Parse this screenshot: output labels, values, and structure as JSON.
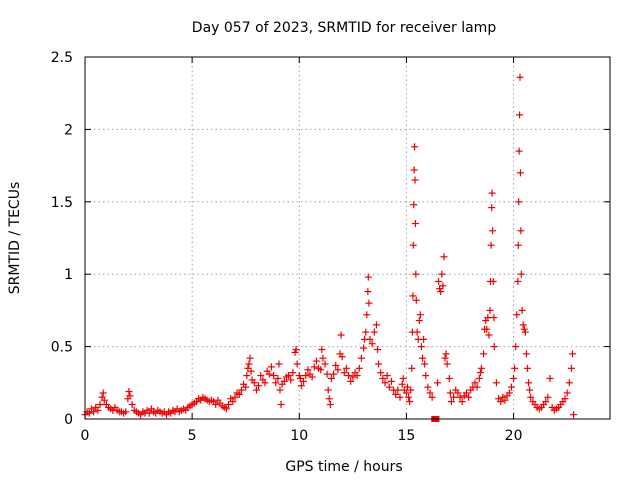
{
  "chart_data": {
    "type": "scatter",
    "title": "Day 057 of 2023, SRMTID for receiver lamp",
    "xlabel": "GPS time / hours",
    "ylabel": "SRMTID / TECUs",
    "xlim": [
      0,
      24.5
    ],
    "ylim": [
      0,
      2.5
    ],
    "xticks": [
      0,
      5,
      10,
      15,
      20
    ],
    "xtick_labels": [
      "0",
      "5",
      "10",
      "15",
      "20"
    ],
    "yticks": [
      0,
      0.5,
      1,
      1.5,
      2,
      2.5
    ],
    "ytick_labels": [
      "0",
      "0.5",
      "1",
      "1.5",
      "2",
      "2.5"
    ],
    "grid": true,
    "marker": "+",
    "color": "#ee0000",
    "series": [
      {
        "name": "lamp",
        "points": [
          [
            0.0,
            0.03
          ],
          [
            0.1,
            0.05
          ],
          [
            0.2,
            0.04
          ],
          [
            0.3,
            0.07
          ],
          [
            0.4,
            0.05
          ],
          [
            0.5,
            0.08
          ],
          [
            0.6,
            0.06
          ],
          [
            0.7,
            0.1
          ],
          [
            0.8,
            0.15
          ],
          [
            0.85,
            0.18
          ],
          [
            0.9,
            0.13
          ],
          [
            1.0,
            0.1
          ],
          [
            1.1,
            0.08
          ],
          [
            1.2,
            0.07
          ],
          [
            1.3,
            0.06
          ],
          [
            1.4,
            0.08
          ],
          [
            1.5,
            0.06
          ],
          [
            1.6,
            0.05
          ],
          [
            1.7,
            0.05
          ],
          [
            1.8,
            0.04
          ],
          [
            1.9,
            0.05
          ],
          [
            2.0,
            0.14
          ],
          [
            2.05,
            0.19
          ],
          [
            2.1,
            0.16
          ],
          [
            2.2,
            0.1
          ],
          [
            2.3,
            0.06
          ],
          [
            2.4,
            0.05
          ],
          [
            2.5,
            0.04
          ],
          [
            2.6,
            0.03
          ],
          [
            2.7,
            0.05
          ],
          [
            2.8,
            0.04
          ],
          [
            2.9,
            0.06
          ],
          [
            3.0,
            0.04
          ],
          [
            3.1,
            0.07
          ],
          [
            3.2,
            0.05
          ],
          [
            3.3,
            0.04
          ],
          [
            3.4,
            0.06
          ],
          [
            3.5,
            0.05
          ],
          [
            3.6,
            0.04
          ],
          [
            3.7,
            0.05
          ],
          [
            3.8,
            0.03
          ],
          [
            3.9,
            0.05
          ],
          [
            4.0,
            0.04
          ],
          [
            4.1,
            0.06
          ],
          [
            4.2,
            0.05
          ],
          [
            4.3,
            0.07
          ],
          [
            4.4,
            0.05
          ],
          [
            4.5,
            0.06
          ],
          [
            4.6,
            0.07
          ],
          [
            4.7,
            0.06
          ],
          [
            4.8,
            0.08
          ],
          [
            4.9,
            0.09
          ],
          [
            5.0,
            0.1
          ],
          [
            5.1,
            0.11
          ],
          [
            5.2,
            0.12
          ],
          [
            5.3,
            0.14
          ],
          [
            5.4,
            0.13
          ],
          [
            5.5,
            0.15
          ],
          [
            5.6,
            0.14
          ],
          [
            5.7,
            0.13
          ],
          [
            5.8,
            0.12
          ],
          [
            5.9,
            0.13
          ],
          [
            6.0,
            0.12
          ],
          [
            6.1,
            0.1
          ],
          [
            6.2,
            0.13
          ],
          [
            6.3,
            0.11
          ],
          [
            6.4,
            0.09
          ],
          [
            6.5,
            0.08
          ],
          [
            6.6,
            0.07
          ],
          [
            6.7,
            0.1
          ],
          [
            6.8,
            0.14
          ],
          [
            6.9,
            0.12
          ],
          [
            7.0,
            0.15
          ],
          [
            7.1,
            0.18
          ],
          [
            7.2,
            0.17
          ],
          [
            7.3,
            0.2
          ],
          [
            7.4,
            0.24
          ],
          [
            7.5,
            0.22
          ],
          [
            7.55,
            0.3
          ],
          [
            7.6,
            0.35
          ],
          [
            7.65,
            0.38
          ],
          [
            7.7,
            0.42
          ],
          [
            7.75,
            0.33
          ],
          [
            7.8,
            0.27
          ],
          [
            7.9,
            0.25
          ],
          [
            8.0,
            0.2
          ],
          [
            8.1,
            0.23
          ],
          [
            8.2,
            0.3
          ],
          [
            8.3,
            0.27
          ],
          [
            8.4,
            0.25
          ],
          [
            8.5,
            0.33
          ],
          [
            8.6,
            0.31
          ],
          [
            8.7,
            0.36
          ],
          [
            8.8,
            0.3
          ],
          [
            8.9,
            0.25
          ],
          [
            9.0,
            0.28
          ],
          [
            9.05,
            0.38
          ],
          [
            9.1,
            0.2
          ],
          [
            9.15,
            0.1
          ],
          [
            9.2,
            0.24
          ],
          [
            9.3,
            0.26
          ],
          [
            9.4,
            0.29
          ],
          [
            9.5,
            0.3
          ],
          [
            9.6,
            0.27
          ],
          [
            9.7,
            0.32
          ],
          [
            9.8,
            0.46
          ],
          [
            9.85,
            0.48
          ],
          [
            9.9,
            0.38
          ],
          [
            10.0,
            0.3
          ],
          [
            10.05,
            0.28
          ],
          [
            10.1,
            0.23
          ],
          [
            10.2,
            0.26
          ],
          [
            10.3,
            0.3
          ],
          [
            10.4,
            0.34
          ],
          [
            10.5,
            0.31
          ],
          [
            10.6,
            0.29
          ],
          [
            10.7,
            0.36
          ],
          [
            10.8,
            0.4
          ],
          [
            10.9,
            0.35
          ],
          [
            11.0,
            0.34
          ],
          [
            11.05,
            0.48
          ],
          [
            11.1,
            0.42
          ],
          [
            11.2,
            0.38
          ],
          [
            11.3,
            0.31
          ],
          [
            11.35,
            0.2
          ],
          [
            11.4,
            0.14
          ],
          [
            11.45,
            0.1
          ],
          [
            11.5,
            0.28
          ],
          [
            11.6,
            0.31
          ],
          [
            11.7,
            0.37
          ],
          [
            11.8,
            0.34
          ],
          [
            11.9,
            0.45
          ],
          [
            11.95,
            0.58
          ],
          [
            12.0,
            0.43
          ],
          [
            12.1,
            0.32
          ],
          [
            12.2,
            0.35
          ],
          [
            12.3,
            0.3
          ],
          [
            12.4,
            0.26
          ],
          [
            12.5,
            0.29
          ],
          [
            12.6,
            0.32
          ],
          [
            12.7,
            0.3
          ],
          [
            12.8,
            0.35
          ],
          [
            12.9,
            0.42
          ],
          [
            13.0,
            0.49
          ],
          [
            13.05,
            0.55
          ],
          [
            13.1,
            0.6
          ],
          [
            13.15,
            0.72
          ],
          [
            13.2,
            0.88
          ],
          [
            13.22,
            0.98
          ],
          [
            13.25,
            0.8
          ],
          [
            13.3,
            0.55
          ],
          [
            13.4,
            0.52
          ],
          [
            13.5,
            0.6
          ],
          [
            13.6,
            0.65
          ],
          [
            13.65,
            0.48
          ],
          [
            13.7,
            0.38
          ],
          [
            13.8,
            0.32
          ],
          [
            13.9,
            0.28
          ],
          [
            14.0,
            0.25
          ],
          [
            14.1,
            0.3
          ],
          [
            14.2,
            0.22
          ],
          [
            14.3,
            0.26
          ],
          [
            14.4,
            0.2
          ],
          [
            14.5,
            0.17
          ],
          [
            14.6,
            0.2
          ],
          [
            14.7,
            0.15
          ],
          [
            14.8,
            0.24
          ],
          [
            14.85,
            0.28
          ],
          [
            14.9,
            0.2
          ],
          [
            15.0,
            0.18
          ],
          [
            15.05,
            0.22
          ],
          [
            15.1,
            0.15
          ],
          [
            15.15,
            0.12
          ],
          [
            15.2,
            0.2
          ],
          [
            15.25,
            0.35
          ],
          [
            15.28,
            0.6
          ],
          [
            15.3,
            0.85
          ],
          [
            15.32,
            1.2
          ],
          [
            15.34,
            1.48
          ],
          [
            15.36,
            1.72
          ],
          [
            15.38,
            1.88
          ],
          [
            15.4,
            1.65
          ],
          [
            15.42,
            1.35
          ],
          [
            15.44,
            1.0
          ],
          [
            15.46,
            0.82
          ],
          [
            15.5,
            0.6
          ],
          [
            15.55,
            0.55
          ],
          [
            15.6,
            0.68
          ],
          [
            15.65,
            0.72
          ],
          [
            15.7,
            0.5
          ],
          [
            15.75,
            0.42
          ],
          [
            15.8,
            0.55
          ],
          [
            15.85,
            0.38
          ],
          [
            15.9,
            0.3
          ],
          [
            16.0,
            0.22
          ],
          [
            16.1,
            0.18
          ],
          [
            16.2,
            0.15
          ],
          [
            16.3,
            0.0
          ],
          [
            16.4,
            0.0
          ],
          [
            16.45,
            0.25
          ],
          [
            16.5,
            0.95
          ],
          [
            16.55,
            0.9
          ],
          [
            16.6,
            0.88
          ],
          [
            16.65,
            1.0
          ],
          [
            16.7,
            0.92
          ],
          [
            16.75,
            1.12
          ],
          [
            16.8,
            0.42
          ],
          [
            16.85,
            0.45
          ],
          [
            16.9,
            0.38
          ],
          [
            17.0,
            0.28
          ],
          [
            17.05,
            0.18
          ],
          [
            17.1,
            0.12
          ],
          [
            17.2,
            0.15
          ],
          [
            17.3,
            0.2
          ],
          [
            17.4,
            0.18
          ],
          [
            17.5,
            0.15
          ],
          [
            17.6,
            0.12
          ],
          [
            17.7,
            0.16
          ],
          [
            17.8,
            0.18
          ],
          [
            17.9,
            0.15
          ],
          [
            18.0,
            0.2
          ],
          [
            18.1,
            0.22
          ],
          [
            18.2,
            0.25
          ],
          [
            18.3,
            0.22
          ],
          [
            18.4,
            0.28
          ],
          [
            18.45,
            0.32
          ],
          [
            18.5,
            0.35
          ],
          [
            18.6,
            0.45
          ],
          [
            18.65,
            0.62
          ],
          [
            18.7,
            0.68
          ],
          [
            18.75,
            0.62
          ],
          [
            18.8,
            0.7
          ],
          [
            18.85,
            0.58
          ],
          [
            18.9,
            0.75
          ],
          [
            18.92,
            0.95
          ],
          [
            18.95,
            1.2
          ],
          [
            18.98,
            1.46
          ],
          [
            19.0,
            1.56
          ],
          [
            19.02,
            1.3
          ],
          [
            19.05,
            0.95
          ],
          [
            19.08,
            0.7
          ],
          [
            19.1,
            0.5
          ],
          [
            19.2,
            0.25
          ],
          [
            19.3,
            0.14
          ],
          [
            19.4,
            0.12
          ],
          [
            19.5,
            0.15
          ],
          [
            19.6,
            0.13
          ],
          [
            19.7,
            0.16
          ],
          [
            19.8,
            0.18
          ],
          [
            19.9,
            0.22
          ],
          [
            20.0,
            0.28
          ],
          [
            20.05,
            0.35
          ],
          [
            20.1,
            0.5
          ],
          [
            20.15,
            0.72
          ],
          [
            20.2,
            0.95
          ],
          [
            20.22,
            1.2
          ],
          [
            20.24,
            1.5
          ],
          [
            20.26,
            1.85
          ],
          [
            20.28,
            2.1
          ],
          [
            20.3,
            2.36
          ],
          [
            20.32,
            1.7
          ],
          [
            20.34,
            1.3
          ],
          [
            20.36,
            1.0
          ],
          [
            20.4,
            0.75
          ],
          [
            20.45,
            0.65
          ],
          [
            20.5,
            0.62
          ],
          [
            20.55,
            0.6
          ],
          [
            20.6,
            0.45
          ],
          [
            20.65,
            0.35
          ],
          [
            20.7,
            0.25
          ],
          [
            20.75,
            0.2
          ],
          [
            20.8,
            0.15
          ],
          [
            20.9,
            0.12
          ],
          [
            21.0,
            0.1
          ],
          [
            21.1,
            0.08
          ],
          [
            21.2,
            0.07
          ],
          [
            21.3,
            0.08
          ],
          [
            21.4,
            0.1
          ],
          [
            21.5,
            0.12
          ],
          [
            21.6,
            0.15
          ],
          [
            21.7,
            0.28
          ],
          [
            21.8,
            0.08
          ],
          [
            21.9,
            0.06
          ],
          [
            22.0,
            0.07
          ],
          [
            22.1,
            0.08
          ],
          [
            22.2,
            0.1
          ],
          [
            22.3,
            0.12
          ],
          [
            22.4,
            0.14
          ],
          [
            22.5,
            0.18
          ],
          [
            22.6,
            0.25
          ],
          [
            22.7,
            0.35
          ],
          [
            22.75,
            0.45
          ],
          [
            22.8,
            0.03
          ]
        ]
      }
    ]
  }
}
